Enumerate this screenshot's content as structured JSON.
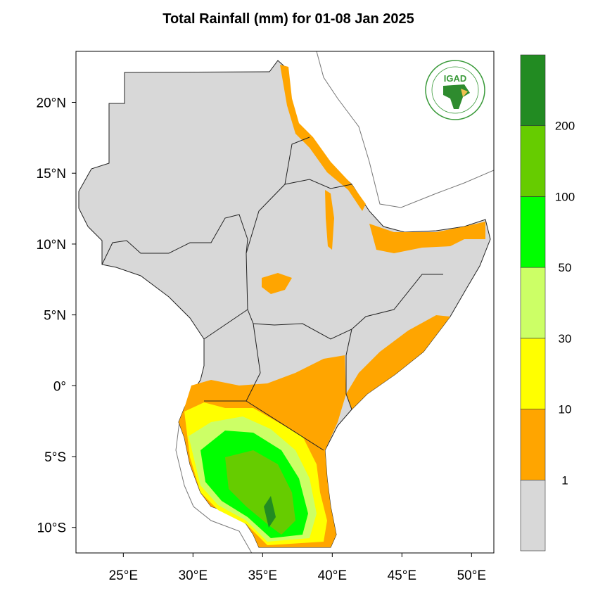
{
  "title": "Total Rainfall (mm) for 01-08 Jan 2025",
  "map": {
    "extent": {
      "lon": [
        21.6,
        51.6
      ],
      "lat": [
        -11.8,
        23.6
      ]
    },
    "land_color": "#d8d8d8",
    "lon_ticks": [
      "25°E",
      "30°E",
      "35°E",
      "40°E",
      "45°E",
      "50°E"
    ],
    "lat_ticks": [
      "20°N",
      "15°N",
      "10°N",
      "5°N",
      "0°",
      "5°S",
      "10°S"
    ]
  },
  "logo": {
    "text": "IGAD",
    "ring_text": "INTERGOVERNMENTAL AUTHORITY ON DEVELOPMENT"
  },
  "colorbar": {
    "colors": [
      "#d8d8d8",
      "#ffa500",
      "#ffff00",
      "#ccff66",
      "#00ff00",
      "#66cc00",
      "#228b22"
    ],
    "labels": [
      "1",
      "10",
      "30",
      "50",
      "100",
      "200"
    ]
  }
}
